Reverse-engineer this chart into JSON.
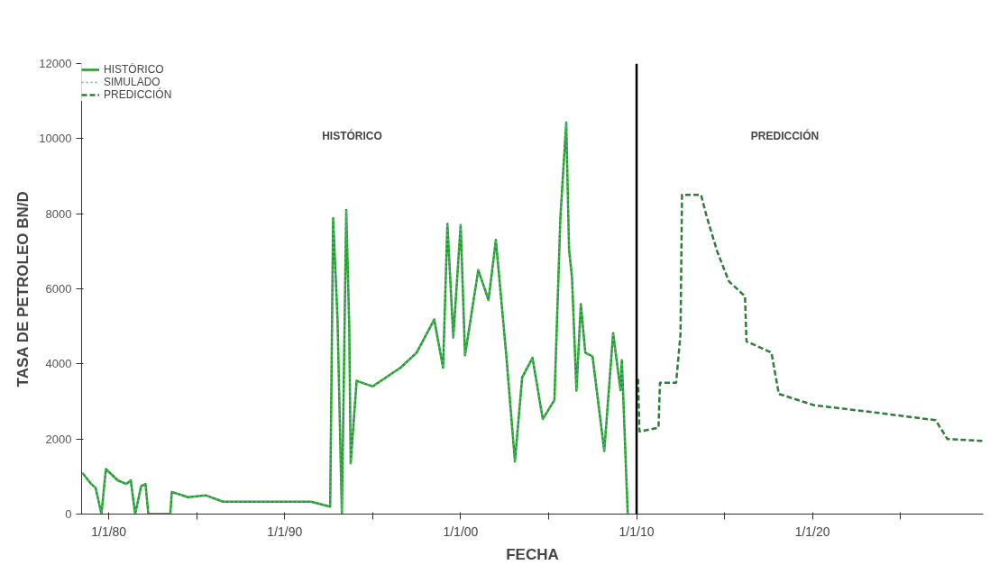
{
  "chart_data": {
    "type": "line",
    "xlabel": "FECHA",
    "ylabel": "TASA DE PETROLEO BN/D",
    "xlim": [
      "1978-06-15",
      "2029-09-15"
    ],
    "ylim": [
      0,
      12000
    ],
    "xticks": [
      {
        "value": "1980-01-01",
        "label": "1/1/80"
      },
      {
        "value": "1985-01-01",
        "label": null
      },
      {
        "value": "1990-01-01",
        "label": "1/1/90"
      },
      {
        "value": "1995-01-01",
        "label": null
      },
      {
        "value": "2000-01-01",
        "label": "1/1/00"
      },
      {
        "value": "2005-01-01",
        "label": null
      },
      {
        "value": "2010-01-01",
        "label": "1/1/10"
      },
      {
        "value": "2015-01-01",
        "label": null
      },
      {
        "value": "2020-01-01",
        "label": "1/1/20"
      },
      {
        "value": "2025-01-01",
        "label": null
      }
    ],
    "yticks": [
      0,
      2000,
      4000,
      6000,
      8000,
      10000,
      12000
    ],
    "grid": false,
    "legend": "top left",
    "ref_lines": [
      {
        "axis": "x",
        "value": "2010-01-01",
        "label": null,
        "color": "#000000"
      }
    ],
    "annotations": [
      "HISTÓRICO",
      "PREDICCIÓN"
    ],
    "series": [
      {
        "name": "HISTÓRICO",
        "color": "#1f9e1f",
        "line_style": "solid",
        "x": [
          "1978-07",
          "1979-01",
          "1979-04",
          "1979-08",
          "1979-11",
          "1980-07",
          "1981-01",
          "1981-04",
          "1981-07",
          "1981-11",
          "1982-02",
          "1982-04",
          "1983-07",
          "1983-08",
          "1984-07",
          "1985-07",
          "1986-07",
          "1988-01",
          "1990-01",
          "1991-07",
          "1992-08",
          "1992-10",
          "1993-01",
          "1993-04",
          "1993-07",
          "1993-09",
          "1993-10",
          "1994-02",
          "1995-01",
          "1996-08",
          "1997-07",
          "1998-07",
          "1999-01",
          "1999-04",
          "1999-08",
          "2000-01",
          "2000-04",
          "2001-01",
          "2001-08",
          "2002-01",
          "2002-08",
          "2003-02",
          "2003-07",
          "2004-02",
          "2004-09",
          "2005-05",
          "2005-09",
          "2006-01",
          "2006-03",
          "2006-05",
          "2006-08",
          "2006-11",
          "2007-02",
          "2007-07",
          "2008-03",
          "2008-09",
          "2009-02",
          "2009-03",
          "2009-07"
        ],
        "values": [
          1100,
          800,
          700,
          0,
          1200,
          900,
          800,
          900,
          0,
          740,
          800,
          0,
          0,
          590,
          450,
          500,
          330,
          330,
          330,
          330,
          200,
          7880,
          5180,
          0,
          8100,
          5000,
          1350,
          3550,
          3400,
          3900,
          4300,
          5180,
          3900,
          7730,
          4700,
          7700,
          4230,
          6500,
          5700,
          7300,
          4300,
          1400,
          3640,
          4160,
          2530,
          3040,
          7880,
          10430,
          7040,
          6300,
          3290,
          5590,
          4300,
          4200,
          1680,
          4820,
          3300,
          4100,
          0
        ]
      },
      {
        "name": "SIMULADO",
        "color": "#5fb3a0",
        "line_style": "dotted",
        "x": [
          "1978-07",
          "1979-01",
          "1979-04",
          "1979-08",
          "1979-11",
          "1980-07",
          "1981-01",
          "1981-04",
          "1981-07",
          "1981-11",
          "1982-02",
          "1982-04",
          "1983-07",
          "1983-08",
          "1984-07",
          "1985-07",
          "1986-07",
          "1988-01",
          "1990-01",
          "1991-07",
          "1992-08",
          "1992-10",
          "1993-01",
          "1993-04",
          "1993-07",
          "1993-09",
          "1993-10",
          "1994-02",
          "1995-01",
          "1996-08",
          "1997-07",
          "1998-07",
          "1999-01",
          "1999-04",
          "1999-08",
          "2000-01",
          "2000-04",
          "2001-01",
          "2001-08",
          "2002-01",
          "2002-08",
          "2003-02",
          "2003-07",
          "2004-02",
          "2004-09",
          "2005-05",
          "2005-09",
          "2006-01",
          "2006-03",
          "2006-05",
          "2006-08",
          "2006-11",
          "2007-02",
          "2007-07",
          "2008-03",
          "2008-09",
          "2009-02",
          "2009-03",
          "2009-07"
        ],
        "values": [
          1100,
          800,
          700,
          0,
          1200,
          900,
          800,
          900,
          0,
          740,
          800,
          0,
          0,
          590,
          450,
          500,
          330,
          330,
          330,
          330,
          200,
          7880,
          5180,
          0,
          8100,
          5000,
          1350,
          3550,
          3400,
          3900,
          4300,
          5180,
          3900,
          7730,
          4700,
          7700,
          4230,
          6500,
          5700,
          7300,
          4300,
          1400,
          3640,
          4160,
          2530,
          3040,
          7880,
          10430,
          7040,
          6300,
          3290,
          5590,
          4300,
          4200,
          1680,
          4820,
          3300,
          4100,
          0
        ]
      },
      {
        "name": "PREDICCIÓN",
        "color": "#2e7d3a",
        "line_style": "dashed",
        "x": [
          "2010-02",
          "2010-03",
          "2011-04",
          "2011-05",
          "2012-04",
          "2012-07",
          "2012-08",
          "2013-09",
          "2014-01",
          "2014-08",
          "2015-04",
          "2016-03",
          "2016-04",
          "2017-09",
          "2018-02",
          "2020-02",
          "2023-09",
          "2027-01",
          "2027-09",
          "2029-09"
        ],
        "values": [
          3600,
          2200,
          2300,
          3500,
          3500,
          4800,
          8500,
          8500,
          7900,
          7000,
          6200,
          5800,
          4600,
          4300,
          3200,
          2900,
          2700,
          2500,
          2000,
          1950
        ]
      }
    ]
  }
}
